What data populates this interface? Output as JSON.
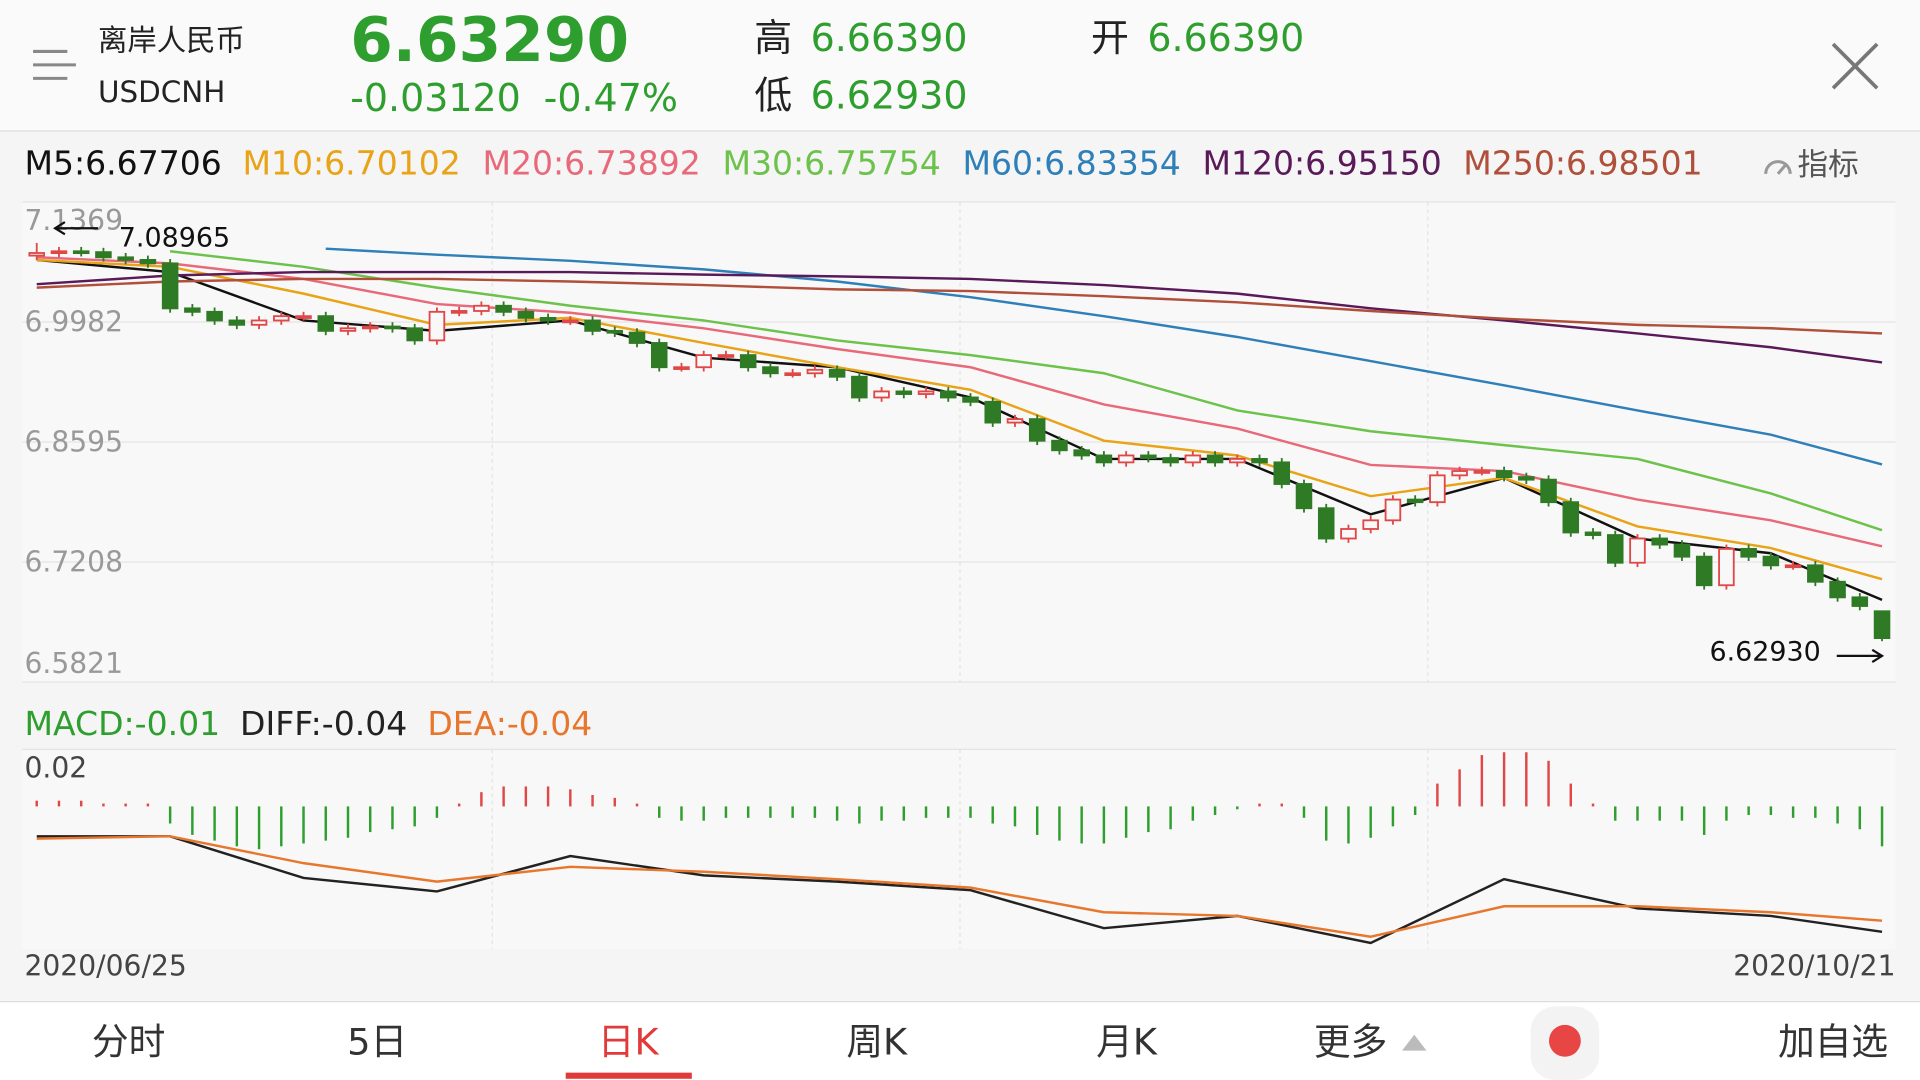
{
  "header": {
    "name": "离岸人民币",
    "code": "USDCNH",
    "price": "6.63290",
    "change": "-0.03120",
    "change_pct": "-0.47%",
    "high_label": "高",
    "high": "6.66390",
    "low_label": "低",
    "low": "6.62930",
    "open_label": "开",
    "open": "6.66390"
  },
  "indicator_button": "指标",
  "tabs": [
    "分时",
    "5日",
    "日K",
    "周K",
    "月K",
    "更多",
    "加自选"
  ],
  "chart_data": [
    {
      "type": "candlestick",
      "up_color": "#e04848",
      "down_color": "#2f7a25",
      "ylim": [
        6.5821,
        7.1369
      ],
      "yticks": [
        7.1369,
        6.9982,
        6.8595,
        6.7208,
        6.5821
      ],
      "grid": true,
      "open": [
        7.075,
        7.078,
        7.08,
        7.079,
        7.073,
        7.07,
        7.066,
        7.014,
        7.01,
        7.0,
        6.995,
        7.0,
        7.005,
        7.005,
        6.988,
        6.991,
        6.993,
        6.991,
        6.977,
        7.01,
        7.011,
        7.017,
        7.01,
        7.003,
        7.0,
        7.0,
        6.988,
        6.986,
        6.974,
        6.946,
        6.946,
        6.96,
        6.96,
        6.946,
        6.939,
        6.939,
        6.943,
        6.935,
        6.911,
        6.918,
        6.915,
        6.918,
        6.911,
        6.906,
        6.882,
        6.886,
        6.861,
        6.85,
        6.844,
        6.836,
        6.844,
        6.841,
        6.836,
        6.844,
        6.836,
        6.84,
        6.836,
        6.811,
        6.783,
        6.748,
        6.759,
        6.769,
        6.793,
        6.79,
        6.821,
        6.826,
        6.826,
        6.819,
        6.816,
        6.79,
        6.755,
        6.752,
        6.72,
        6.748,
        6.741,
        6.727,
        6.694,
        6.736,
        6.727,
        6.717,
        6.717,
        6.698,
        6.68,
        6.6639
      ],
      "high": [
        7.08965,
        7.085,
        7.085,
        7.084,
        7.078,
        7.075,
        7.071,
        7.019,
        7.015,
        7.005,
        7.005,
        7.01,
        7.01,
        7.01,
        6.996,
        6.998,
        6.998,
        6.996,
        7.015,
        7.016,
        7.022,
        7.022,
        7.015,
        7.008,
        7.005,
        7.005,
        6.993,
        6.991,
        6.979,
        6.951,
        6.965,
        6.965,
        6.965,
        6.951,
        6.944,
        6.948,
        6.948,
        6.94,
        6.923,
        6.923,
        6.923,
        6.923,
        6.916,
        6.911,
        6.891,
        6.891,
        6.866,
        6.855,
        6.849,
        6.849,
        6.849,
        6.846,
        6.849,
        6.849,
        6.845,
        6.845,
        6.841,
        6.816,
        6.788,
        6.764,
        6.774,
        6.798,
        6.798,
        6.826,
        6.831,
        6.831,
        6.831,
        6.824,
        6.821,
        6.795,
        6.76,
        6.757,
        6.753,
        6.753,
        6.746,
        6.732,
        6.741,
        6.741,
        6.732,
        6.722,
        6.722,
        6.703,
        6.685,
        6.6639
      ],
      "low": [
        7.07,
        7.073,
        7.074,
        7.068,
        7.065,
        7.061,
        7.009,
        7.005,
        6.995,
        6.99,
        6.99,
        6.995,
        7.0,
        6.983,
        6.983,
        6.986,
        6.986,
        6.972,
        6.972,
        7.005,
        7.006,
        7.005,
        6.998,
        6.995,
        6.995,
        6.983,
        6.981,
        6.969,
        6.941,
        6.941,
        6.941,
        6.955,
        6.941,
        6.934,
        6.934,
        6.934,
        6.93,
        6.906,
        6.906,
        6.91,
        6.91,
        6.906,
        6.901,
        6.877,
        6.877,
        6.856,
        6.845,
        6.839,
        6.831,
        6.831,
        6.836,
        6.831,
        6.831,
        6.831,
        6.831,
        6.831,
        6.806,
        6.778,
        6.743,
        6.743,
        6.754,
        6.764,
        6.785,
        6.785,
        6.816,
        6.821,
        6.814,
        6.811,
        6.785,
        6.75,
        6.747,
        6.715,
        6.715,
        6.736,
        6.722,
        6.689,
        6.689,
        6.722,
        6.712,
        6.712,
        6.693,
        6.675,
        6.665,
        6.6293
      ],
      "close": [
        7.078,
        7.08,
        7.079,
        7.073,
        7.07,
        7.066,
        7.014,
        7.01,
        7.0,
        6.995,
        7.0,
        7.005,
        7.005,
        6.988,
        6.991,
        6.993,
        6.991,
        6.977,
        7.01,
        7.011,
        7.017,
        7.01,
        7.003,
        7.0,
        7.0,
        6.988,
        6.986,
        6.974,
        6.946,
        6.946,
        6.96,
        6.96,
        6.946,
        6.939,
        6.939,
        6.943,
        6.935,
        6.911,
        6.918,
        6.915,
        6.918,
        6.911,
        6.906,
        6.882,
        6.886,
        6.861,
        6.85,
        6.844,
        6.836,
        6.844,
        6.841,
        6.836,
        6.844,
        6.836,
        6.84,
        6.836,
        6.811,
        6.783,
        6.748,
        6.759,
        6.769,
        6.793,
        6.79,
        6.821,
        6.826,
        6.826,
        6.819,
        6.816,
        6.79,
        6.755,
        6.752,
        6.72,
        6.748,
        6.741,
        6.727,
        6.694,
        6.736,
        6.727,
        6.717,
        6.717,
        6.698,
        6.68,
        6.67,
        6.6329
      ],
      "legend": [
        "M5:6.67706",
        "M10:6.70102",
        "M20:6.73892",
        "M30:6.75754",
        "M60:6.83354",
        "M120:6.95150",
        "M250:6.98501"
      ],
      "lines": [
        {
          "color": "#111111",
          "x": [
            0,
            6,
            12,
            18,
            24,
            30,
            36,
            42,
            48,
            54,
            60,
            66,
            72,
            78,
            83
          ],
          "values": [
            7.07,
            7.056,
            7.0,
            6.988,
            7.0,
            6.957,
            6.946,
            6.911,
            6.84,
            6.84,
            6.776,
            6.818,
            6.748,
            6.731,
            6.67706
          ]
        },
        {
          "color": "#e8a317",
          "x": [
            0,
            6,
            12,
            18,
            24,
            30,
            36,
            42,
            48,
            54,
            60,
            66,
            72,
            78,
            83
          ],
          "values": [
            7.07,
            7.062,
            7.031,
            6.995,
            7.003,
            6.974,
            6.946,
            6.92,
            6.861,
            6.844,
            6.797,
            6.818,
            6.762,
            6.737,
            6.70102
          ]
        },
        {
          "color": "#e86a7a",
          "x": [
            0,
            6,
            12,
            18,
            24,
            30,
            36,
            42,
            48,
            54,
            60,
            66,
            72,
            78,
            83
          ],
          "values": [
            7.073,
            7.066,
            7.048,
            7.019,
            7.009,
            6.991,
            6.967,
            6.946,
            6.903,
            6.875,
            6.833,
            6.826,
            6.793,
            6.769,
            6.73892
          ]
        },
        {
          "color": "#6cc24a",
          "x": [
            6,
            12,
            18,
            24,
            30,
            36,
            42,
            48,
            54,
            60,
            66,
            72,
            78,
            83
          ],
          "values": [
            7.08,
            7.062,
            7.038,
            7.017,
            7.0,
            6.977,
            6.96,
            6.939,
            6.896,
            6.872,
            6.856,
            6.84,
            6.8,
            6.75754
          ]
        },
        {
          "color": "#2f7fb8",
          "x": [
            13,
            18,
            24,
            30,
            36,
            42,
            48,
            54,
            60,
            66,
            72,
            78,
            83
          ],
          "values": [
            7.083,
            7.076,
            7.069,
            7.059,
            7.045,
            7.027,
            7.005,
            6.981,
            6.953,
            6.925,
            6.896,
            6.868,
            6.83354
          ]
        },
        {
          "color": "#5a1a5a",
          "x": [
            0,
            6,
            12,
            18,
            24,
            30,
            36,
            42,
            48,
            54,
            60,
            66,
            72,
            78,
            83
          ],
          "values": [
            7.042,
            7.052,
            7.056,
            7.056,
            7.056,
            7.053,
            7.051,
            7.048,
            7.041,
            7.031,
            7.014,
            7.0,
            6.985,
            6.969,
            6.9515
          ]
        },
        {
          "color": "#b0503a",
          "x": [
            0,
            6,
            12,
            18,
            24,
            30,
            36,
            42,
            48,
            54,
            60,
            66,
            72,
            78,
            83
          ],
          "values": [
            7.038,
            7.045,
            7.048,
            7.048,
            7.045,
            7.041,
            7.036,
            7.034,
            7.028,
            7.021,
            7.011,
            7.002,
            6.995,
            6.991,
            6.98501
          ]
        }
      ],
      "annotations": [
        7.08965,
        {
          "value": 6.6293,
          "label": "6.62930"
        }
      ]
    },
    {
      "type": "macd",
      "up_color": "#e04848",
      "down_color": "#2e9e2e",
      "ylim": [
        -0.05,
        0.02
      ],
      "yticks": [
        0.02
      ],
      "legend": [
        "MACD:-0.01",
        "DIFF:-0.04",
        "DEA:-0.04"
      ],
      "histogram": [
        0.002,
        0.002,
        0.002,
        0.001,
        0.001,
        0.001,
        -0.006,
        -0.01,
        -0.012,
        -0.014,
        -0.015,
        -0.014,
        -0.013,
        -0.012,
        -0.011,
        -0.009,
        -0.008,
        -0.007,
        -0.004,
        0.001,
        0.005,
        0.007,
        0.007,
        0.007,
        0.006,
        0.004,
        0.003,
        0.001,
        -0.004,
        -0.005,
        -0.005,
        -0.004,
        -0.004,
        -0.004,
        -0.004,
        -0.004,
        -0.005,
        -0.006,
        -0.005,
        -0.005,
        -0.004,
        -0.004,
        -0.004,
        -0.006,
        -0.007,
        -0.01,
        -0.012,
        -0.013,
        -0.013,
        -0.011,
        -0.009,
        -0.008,
        -0.005,
        -0.003,
        -0.001,
        0.001,
        0.001,
        -0.004,
        -0.012,
        -0.013,
        -0.011,
        -0.007,
        -0.003,
        0.008,
        0.013,
        0.018,
        0.019,
        0.019,
        0.016,
        0.008,
        0.001,
        -0.005,
        -0.005,
        -0.005,
        -0.005,
        -0.01,
        -0.005,
        -0.003,
        -0.003,
        -0.004,
        -0.004,
        -0.006,
        -0.008,
        -0.014
      ],
      "lines": [
        {
          "color": "#222222",
          "x": [
            0,
            6,
            12,
            18,
            24,
            30,
            36,
            42,
            48,
            54,
            60,
            66,
            72,
            78,
            83
          ],
          "values": [
            -0.0105,
            -0.0105,
            -0.0251,
            -0.0298,
            -0.0174,
            -0.0242,
            -0.0264,
            -0.0294,
            -0.0427,
            -0.0384,
            -0.0479,
            -0.0255,
            -0.0358,
            -0.0384,
            -0.044
          ]
        },
        {
          "color": "#e8772e",
          "x": [
            0,
            6,
            12,
            18,
            24,
            30,
            36,
            42,
            48,
            54,
            60,
            66,
            72,
            78,
            83
          ],
          "values": [
            -0.0113,
            -0.0105,
            -0.0199,
            -0.0264,
            -0.0212,
            -0.0229,
            -0.0255,
            -0.0285,
            -0.0371,
            -0.0384,
            -0.0457,
            -0.035,
            -0.035,
            -0.0371,
            -0.0401
          ]
        }
      ],
      "x_labels": [
        "2020/06/25",
        "2020/10/21"
      ]
    }
  ]
}
